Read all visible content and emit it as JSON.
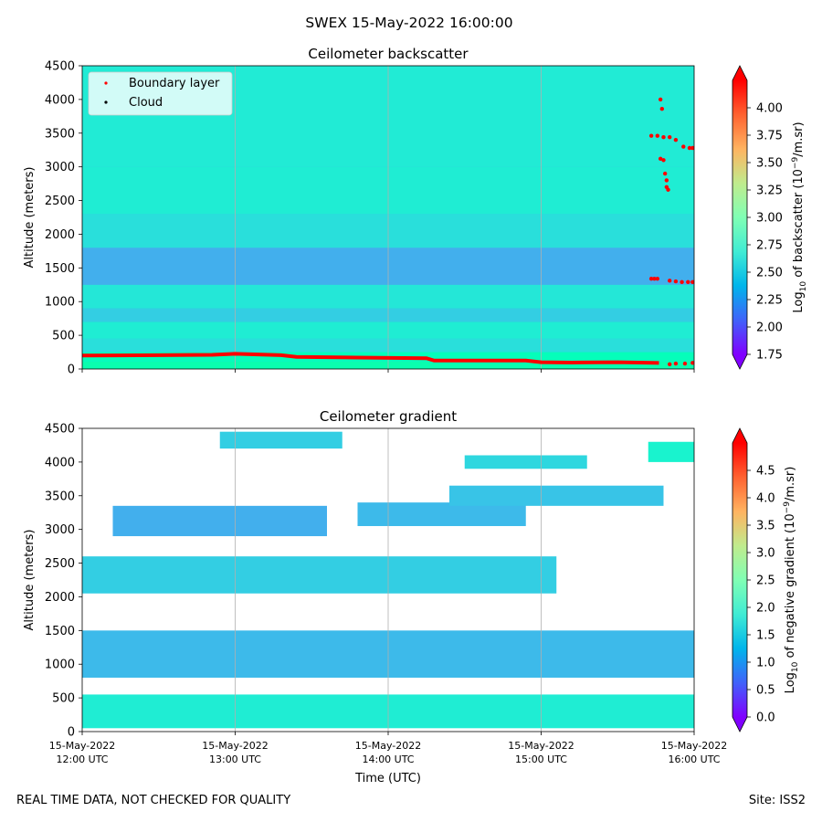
{
  "figure": {
    "suptitle": "SWEX 15-May-2022 16:00:00",
    "footer_left": "REAL TIME DATA, NOT CHECKED FOR QUALITY",
    "footer_right": "Site: ISS2",
    "xlabel": "Time (UTC)",
    "x_ticks": [
      {
        "date": "15-May-2022",
        "time": "12:00 UTC",
        "hour": 12
      },
      {
        "date": "15-May-2022",
        "time": "13:00 UTC",
        "hour": 13
      },
      {
        "date": "15-May-2022",
        "time": "14:00 UTC",
        "hour": 14
      },
      {
        "date": "15-May-2022",
        "time": "15:00 UTC",
        "hour": 15
      },
      {
        "date": "15-May-2022",
        "time": "16:00 UTC",
        "hour": 16
      }
    ]
  },
  "chart_data": [
    {
      "type": "heatmap",
      "title": "Ceilometer backscatter",
      "ylabel": "Altitude (meters)",
      "ylim": [
        0,
        4500
      ],
      "xlim_hours": [
        12,
        16
      ],
      "y_ticks": [
        0,
        500,
        1000,
        1500,
        2000,
        2500,
        3000,
        3500,
        4000,
        4500
      ],
      "colorbar": {
        "label": "Log10 of backscatter (10^-9/m.sr)",
        "label_main": "Log",
        "label_sub": "10",
        "label_rest": " of backscatter (10",
        "label_sup": "−9",
        "label_end": "/m.sr)",
        "range": [
          1.75,
          4.25
        ],
        "ticks": [
          "4.00",
          "3.75",
          "3.50",
          "3.25",
          "3.00",
          "2.75",
          "2.50",
          "2.25",
          "2.00",
          "1.75"
        ],
        "tick_values": [
          4.0,
          3.75,
          3.5,
          3.25,
          3.0,
          2.75,
          2.5,
          2.25,
          2.0,
          1.75
        ],
        "cmap": "rainbow"
      },
      "legend": [
        {
          "label": "Boundary layer",
          "color": "#ff0000"
        },
        {
          "label": "Cloud",
          "color": "#000000"
        }
      ],
      "bands": [
        {
          "alt": [
            0,
            110
          ],
          "value": 3.05
        },
        {
          "alt": [
            110,
            250
          ],
          "value": 2.95
        },
        {
          "alt": [
            250,
            450
          ],
          "value": 2.6
        },
        {
          "alt": [
            450,
            700
          ],
          "value": 2.7
        },
        {
          "alt": [
            700,
            900
          ],
          "value": 2.5
        },
        {
          "alt": [
            900,
            1250
          ],
          "value": 2.65
        },
        {
          "alt": [
            1250,
            1800
          ],
          "value": 2.35
        },
        {
          "alt": [
            1800,
            2300
          ],
          "value": 2.6
        },
        {
          "alt": [
            2300,
            3000
          ],
          "value": 2.7
        },
        {
          "alt": [
            3000,
            4500
          ],
          "value": 2.68
        }
      ],
      "boundary_layer": [
        {
          "t": 12.0,
          "alt": 200
        },
        {
          "t": 12.5,
          "alt": 205
        },
        {
          "t": 12.85,
          "alt": 210
        },
        {
          "t": 13.0,
          "alt": 225
        },
        {
          "t": 13.3,
          "alt": 205
        },
        {
          "t": 13.4,
          "alt": 180
        },
        {
          "t": 13.8,
          "alt": 170
        },
        {
          "t": 14.25,
          "alt": 160
        },
        {
          "t": 14.3,
          "alt": 125
        },
        {
          "t": 14.9,
          "alt": 125
        },
        {
          "t": 15.0,
          "alt": 100
        },
        {
          "t": 15.2,
          "alt": 95
        },
        {
          "t": 15.5,
          "alt": 100
        },
        {
          "t": 15.77,
          "alt": 90
        }
      ],
      "boundary_layer_points": [
        {
          "t": 15.72,
          "alt": 1340
        },
        {
          "t": 15.74,
          "alt": 1340
        },
        {
          "t": 15.76,
          "alt": 1340
        },
        {
          "t": 15.84,
          "alt": 1310
        },
        {
          "t": 15.88,
          "alt": 1300
        },
        {
          "t": 15.92,
          "alt": 1290
        },
        {
          "t": 15.96,
          "alt": 1290
        },
        {
          "t": 15.99,
          "alt": 1290
        },
        {
          "t": 15.72,
          "alt": 3460
        },
        {
          "t": 15.76,
          "alt": 3460
        },
        {
          "t": 15.8,
          "alt": 3440
        },
        {
          "t": 15.84,
          "alt": 3440
        },
        {
          "t": 15.88,
          "alt": 3400
        },
        {
          "t": 15.93,
          "alt": 3300
        },
        {
          "t": 15.97,
          "alt": 3280
        },
        {
          "t": 15.99,
          "alt": 3280
        },
        {
          "t": 15.78,
          "alt": 4000
        },
        {
          "t": 15.79,
          "alt": 3860
        },
        {
          "t": 15.78,
          "alt": 3120
        },
        {
          "t": 15.8,
          "alt": 3100
        },
        {
          "t": 15.81,
          "alt": 2900
        },
        {
          "t": 15.82,
          "alt": 2800
        },
        {
          "t": 15.82,
          "alt": 2700
        },
        {
          "t": 15.83,
          "alt": 2660
        },
        {
          "t": 15.84,
          "alt": 70
        },
        {
          "t": 15.88,
          "alt": 80
        },
        {
          "t": 15.94,
          "alt": 80
        },
        {
          "t": 15.99,
          "alt": 90
        }
      ]
    },
    {
      "type": "heatmap",
      "title": "Ceilometer gradient",
      "ylabel": "Altitude (meters)",
      "ylim": [
        0,
        4500
      ],
      "xlim_hours": [
        12,
        16
      ],
      "y_ticks": [
        0,
        500,
        1000,
        1500,
        2000,
        2500,
        3000,
        3500,
        4000,
        4500
      ],
      "colorbar": {
        "label": "Log10 of negative gradient (10^-9/m.sr)",
        "label_main": "Log",
        "label_sub": "10",
        "label_rest": " of negative gradient (10",
        "label_sup": "−9",
        "label_end": "/m.sr)",
        "range": [
          0,
          5
        ],
        "ticks": [
          "4.5",
          "4.0",
          "3.5",
          "3.0",
          "2.5",
          "2.0",
          "1.5",
          "1.0",
          "0.5",
          "0.0"
        ],
        "tick_values": [
          4.5,
          4.0,
          3.5,
          3.0,
          2.5,
          2.0,
          1.5,
          1.0,
          0.5,
          0.0
        ],
        "cmap": "rainbow"
      },
      "layers": [
        {
          "t": [
            12.0,
            16.0
          ],
          "base": 50,
          "top": 550,
          "value": 1.9
        },
        {
          "t": [
            12.0,
            16.0
          ],
          "base": 800,
          "top": 1500,
          "value": 1.3
        },
        {
          "t": [
            12.0,
            15.1
          ],
          "base": 2050,
          "top": 2600,
          "value": 1.5
        },
        {
          "t": [
            12.2,
            13.6
          ],
          "base": 2900,
          "top": 3350,
          "value": 1.2
        },
        {
          "t": [
            13.8,
            14.9
          ],
          "base": 3050,
          "top": 3400,
          "value": 1.3
        },
        {
          "t": [
            14.4,
            15.8
          ],
          "base": 3350,
          "top": 3650,
          "value": 1.4
        },
        {
          "t": [
            12.9,
            13.7
          ],
          "base": 4200,
          "top": 4450,
          "value": 1.5
        },
        {
          "t": [
            14.5,
            15.3
          ],
          "base": 3900,
          "top": 4100,
          "value": 1.6
        },
        {
          "t": [
            15.7,
            16.0
          ],
          "base": 4000,
          "top": 4300,
          "value": 2.0
        }
      ]
    }
  ]
}
